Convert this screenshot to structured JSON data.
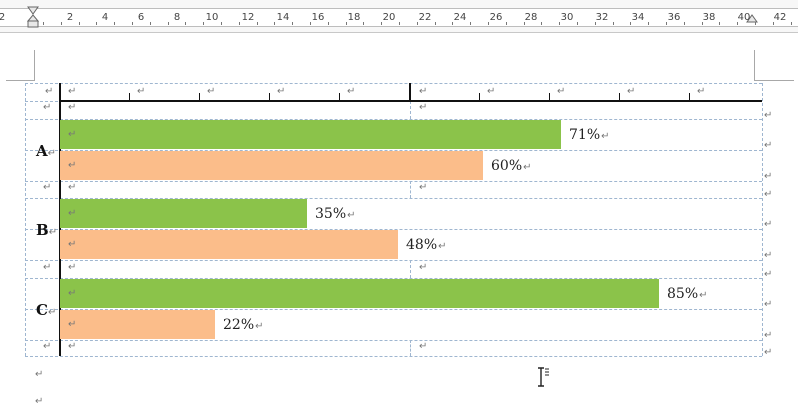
{
  "ruler": {
    "labels": [
      "2",
      "2",
      "4",
      "6",
      "8",
      "10",
      "12",
      "14",
      "16",
      "18",
      "20",
      "22",
      "24",
      "26",
      "28",
      "30",
      "32",
      "34",
      "36",
      "38",
      "40",
      "42"
    ]
  },
  "paragraph_mark": "↵",
  "cell_end_mark": "↵",
  "colors": {
    "green": "#8bc34a",
    "orange": "#fbbd8a",
    "grid": "#9fb6d0"
  },
  "chart_data": {
    "type": "bar",
    "orientation": "horizontal",
    "categories": [
      "A",
      "B",
      "C"
    ],
    "series": [
      {
        "color": "#8bc34a",
        "values": [
          71,
          35,
          85
        ]
      },
      {
        "color": "#fbbd8a",
        "values": [
          60,
          48,
          22
        ]
      }
    ],
    "value_labels": [
      [
        "71%",
        "60%"
      ],
      [
        "35%",
        "48%"
      ],
      [
        "85%",
        "22%"
      ]
    ],
    "xlim": [
      0,
      100
    ],
    "unit": "%"
  }
}
